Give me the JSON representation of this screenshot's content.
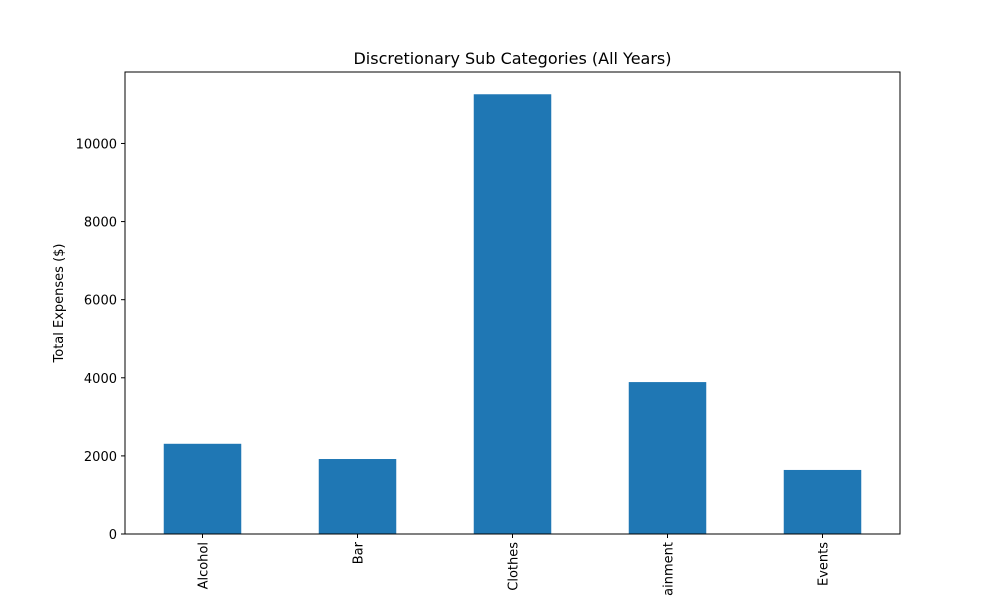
{
  "chart_data": {
    "type": "bar",
    "title": "Discretionary Sub Categories (All Years)",
    "xlabel": "",
    "ylabel": "Total Expenses ($)",
    "categories": [
      "Alcohol",
      "Bar",
      "Clothes",
      "ainment",
      "Events"
    ],
    "values": [
      2310,
      1920,
      11260,
      3890,
      1640
    ],
    "yticks": [
      0,
      2000,
      4000,
      6000,
      8000,
      10000
    ],
    "ylim": [
      0,
      11830
    ],
    "grid": false,
    "bar_color": "#1f77b4"
  }
}
